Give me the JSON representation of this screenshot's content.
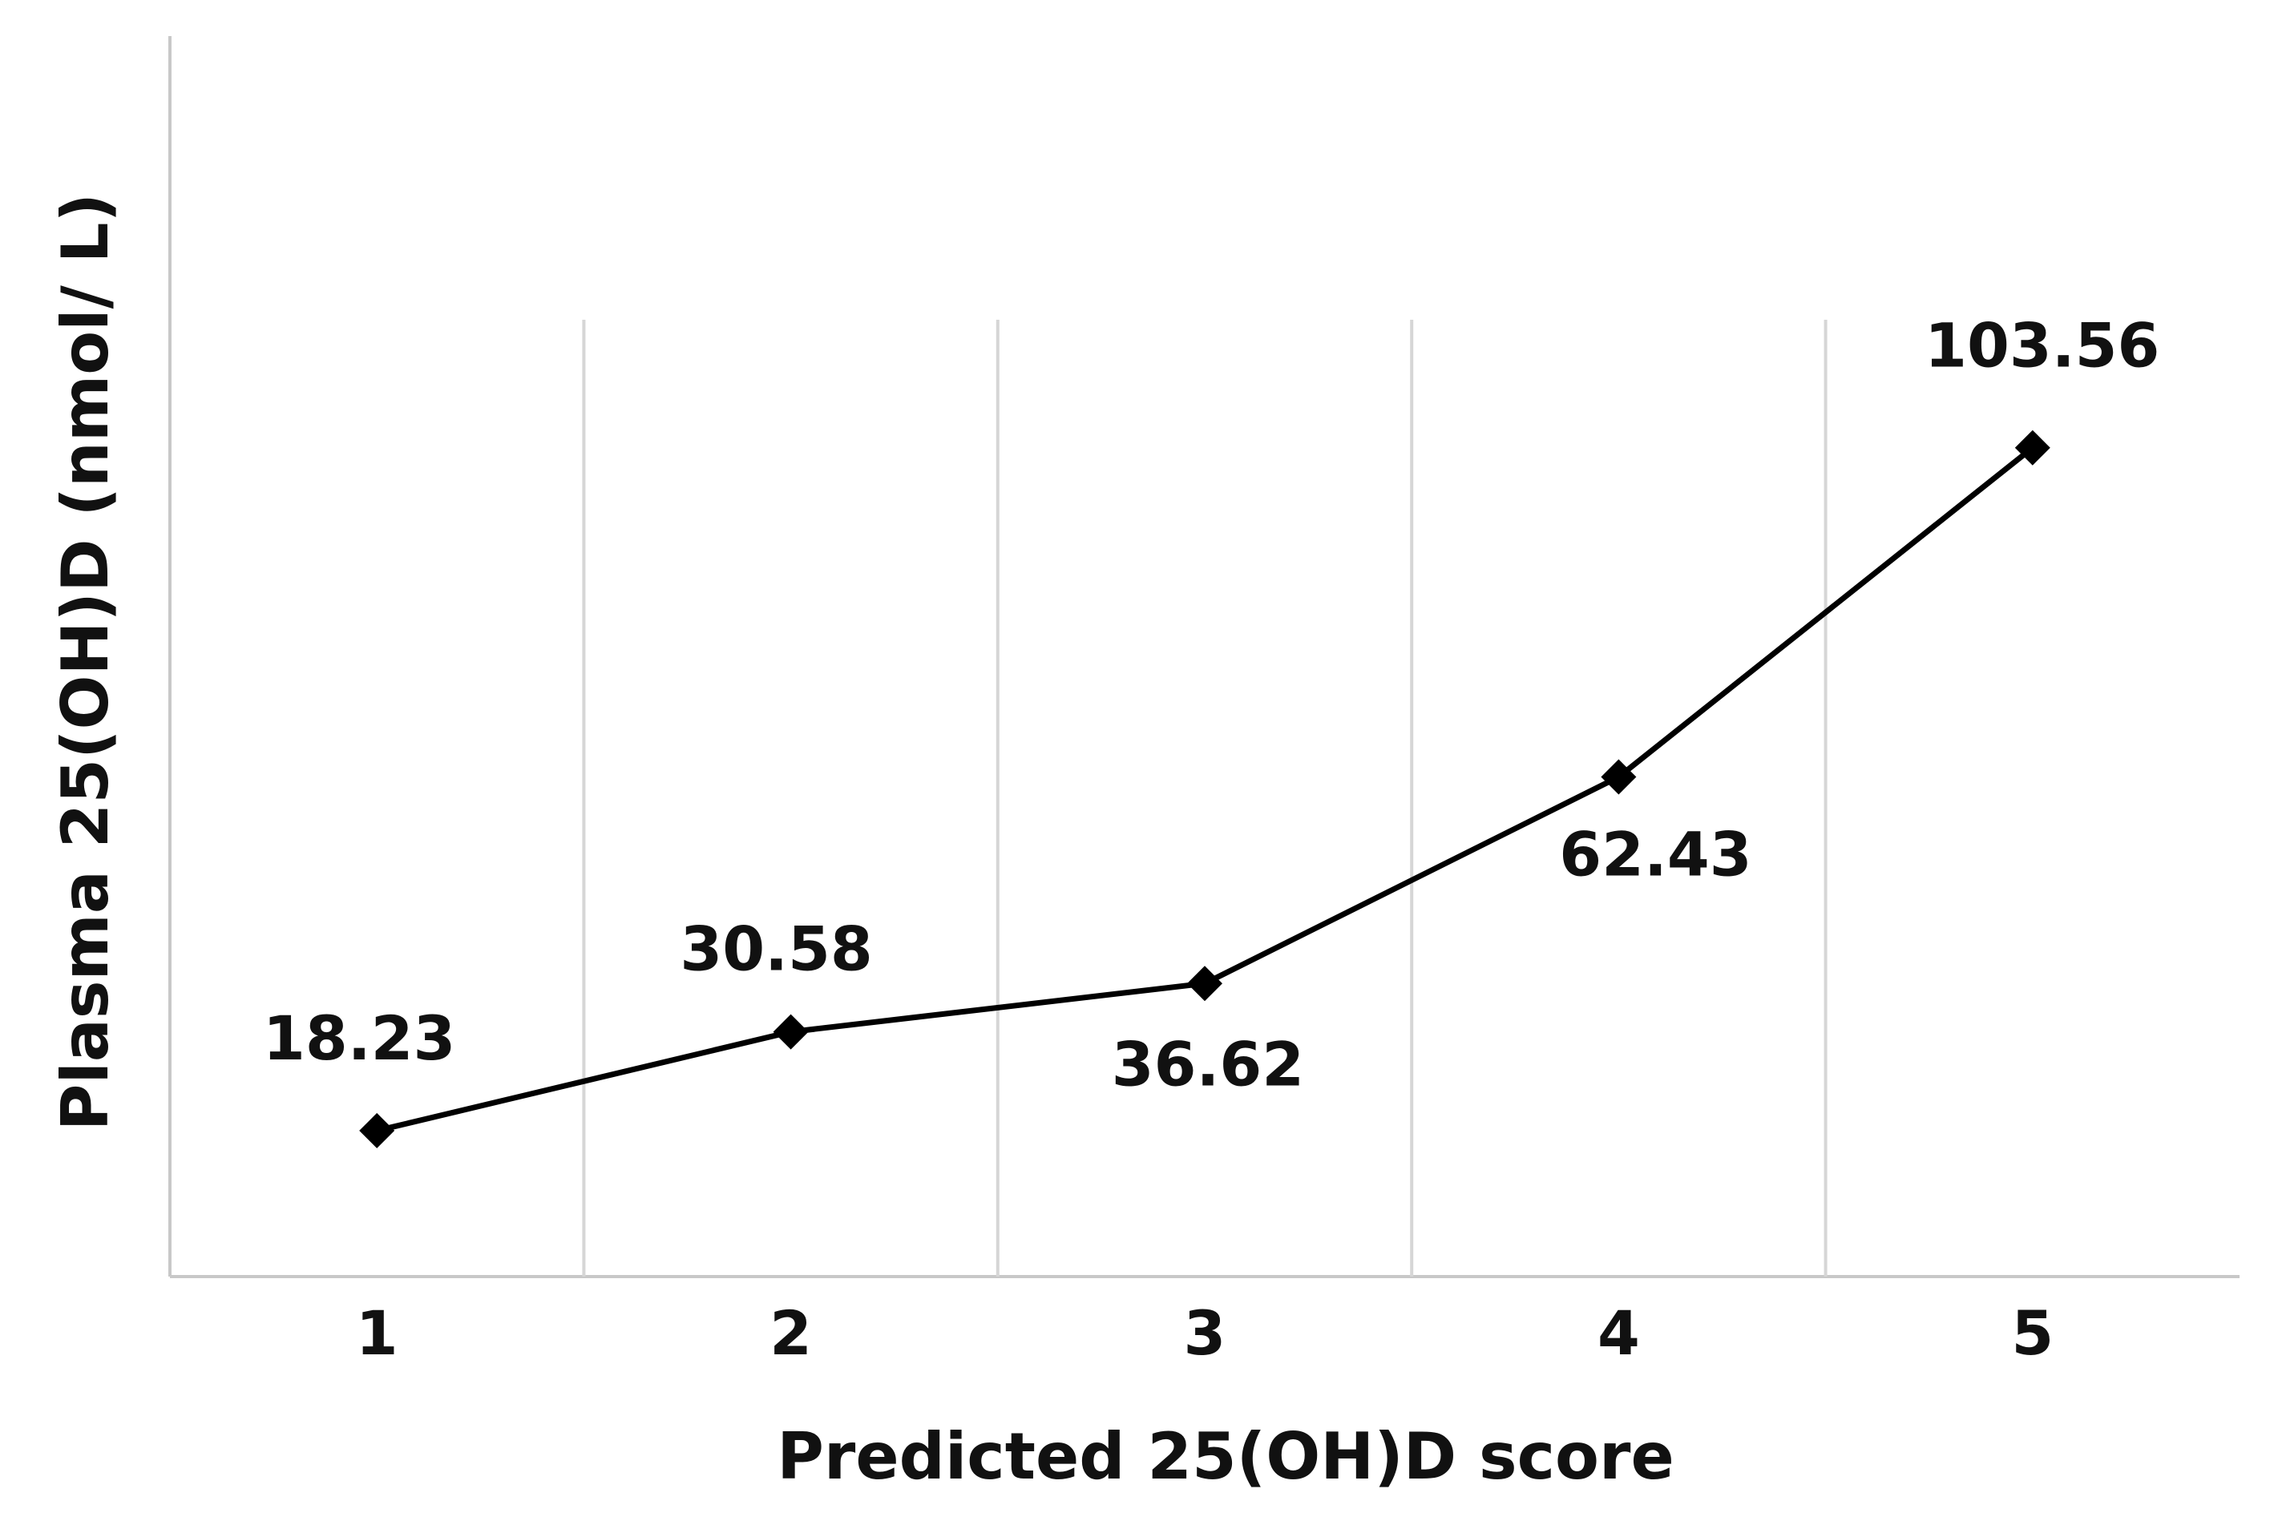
{
  "chart_data": {
    "type": "line",
    "x_label": "Predicted 25(OH)D score",
    "y_label": "Plasma 25(OH)D (nmol/ L)",
    "categories": [
      "1",
      "2",
      "3",
      "4",
      "5"
    ],
    "series": [
      {
        "name": "Plasma 25(OH)D",
        "color": "#000000",
        "values": [
          18.23,
          30.58,
          36.62,
          62.43,
          103.56
        ]
      }
    ],
    "ylim": [
      0,
      155
    ],
    "grid": true
  }
}
